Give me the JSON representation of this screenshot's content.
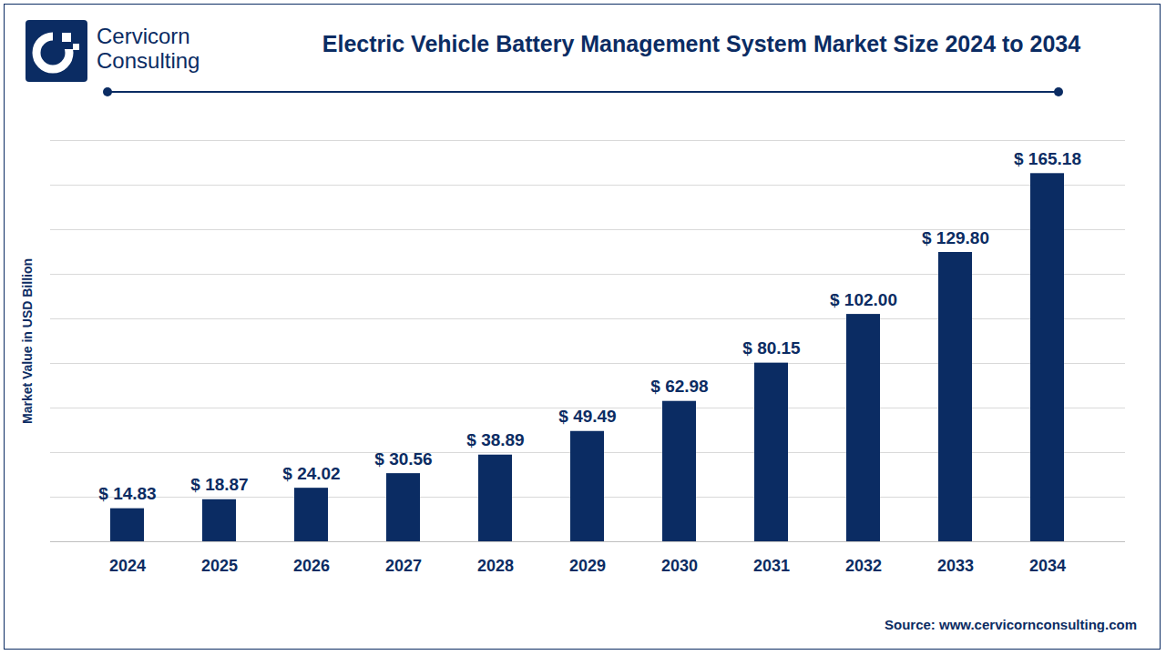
{
  "chart_data": {
    "type": "bar",
    "title": "Electric Vehicle Battery Management System Market Size 2024 to 2034",
    "brand": [
      "Cervicorn",
      "Consulting"
    ],
    "source": "Source: www.cervicornconsulting.com",
    "y_label": "Market Value in USD Billion",
    "categories": [
      "2024",
      "2025",
      "2026",
      "2027",
      "2028",
      "2029",
      "2030",
      "2031",
      "2032",
      "2033",
      "2034"
    ],
    "values": [
      14.83,
      18.87,
      24.02,
      30.56,
      38.89,
      49.49,
      62.98,
      80.15,
      102.0,
      129.8,
      165.18
    ],
    "value_labels": [
      "$ 14.83",
      "$ 18.87",
      "$ 24.02",
      "$ 30.56",
      "$ 38.89",
      "$ 49.49",
      "$ 62.98",
      "$ 80.15",
      "$ 102.00",
      "$ 129.80",
      "$ 165.18"
    ],
    "color": "#0b2c63",
    "ylim": [
      0,
      180
    ],
    "yticks": [
      0,
      20,
      40,
      60,
      80,
      100,
      120,
      140,
      160,
      180
    ],
    "grid": true,
    "data_labels": true,
    "tick_labels": "x"
  }
}
